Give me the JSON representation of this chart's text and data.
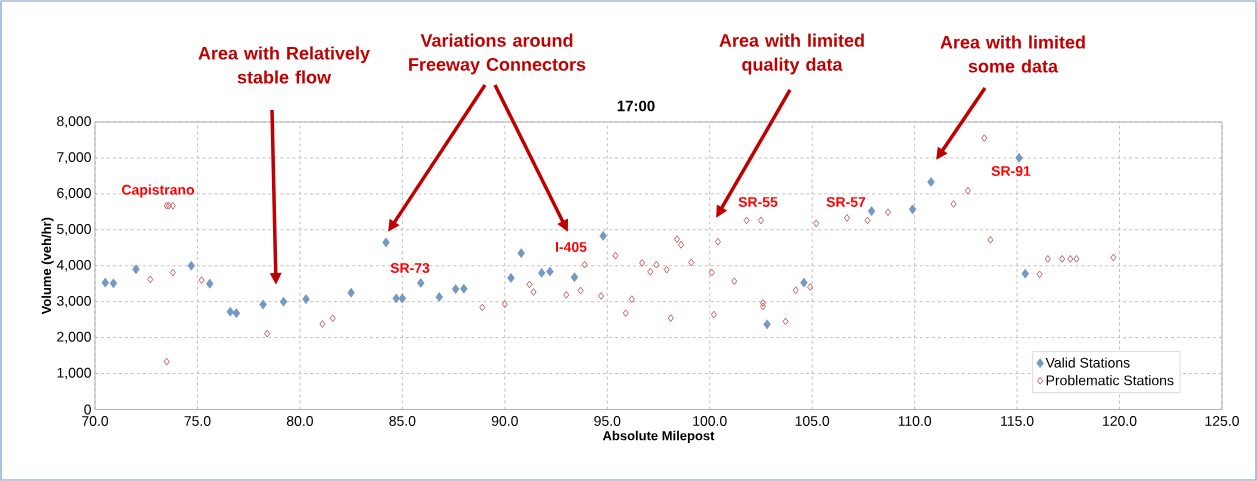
{
  "chart_data": {
    "type": "scatter",
    "title": "17:00",
    "xlabel": "Absolute Milepost",
    "ylabel": "Volume (veh/hr)",
    "xlim": [
      70,
      125
    ],
    "ylim": [
      0,
      8000
    ],
    "xticks": [
      {
        "value": 70,
        "label": "70.0"
      },
      {
        "value": 75,
        "label": "75.0"
      },
      {
        "value": 80,
        "label": "80.0"
      },
      {
        "value": 85,
        "label": "85.0"
      },
      {
        "value": 90,
        "label": "90.0"
      },
      {
        "value": 95,
        "label": "95.0"
      },
      {
        "value": 100,
        "label": "100.0"
      },
      {
        "value": 105,
        "label": "105.0"
      },
      {
        "value": 110,
        "label": "110.0"
      },
      {
        "value": 115,
        "label": "115.0"
      },
      {
        "value": 120,
        "label": "120.0"
      },
      {
        "value": 125,
        "label": "125.0"
      }
    ],
    "yticks": [
      0,
      {
        "value": 1000,
        "label": "1,000"
      },
      {
        "value": 2000,
        "label": "2,000"
      },
      {
        "value": 3000,
        "label": "3,000"
      },
      {
        "value": 4000,
        "label": "4,000"
      },
      {
        "value": 5000,
        "label": "5,000"
      },
      {
        "value": 6000,
        "label": "6,000"
      },
      {
        "value": 7000,
        "label": "7,000"
      },
      {
        "value": 8000,
        "label": "8,000"
      }
    ],
    "grid": true,
    "legend": "bottom right",
    "marker": "diamond",
    "series": [
      {
        "name": "Valid Stations",
        "color": "#7399c6",
        "x": [
          70.5,
          70.9,
          72.0,
          74.7,
          75.6,
          76.6,
          76.9,
          78.2,
          79.2,
          80.3,
          82.5,
          84.2,
          84.7,
          85.0,
          85.9,
          86.8,
          87.6,
          88.0,
          90.3,
          90.8,
          91.8,
          92.2,
          93.4,
          94.8,
          102.8,
          104.6,
          107.9,
          109.9,
          110.8,
          115.1,
          115.4
        ],
        "values": [
          3530,
          3510,
          3900,
          4000,
          3500,
          2720,
          2680,
          2920,
          3000,
          3070,
          3250,
          4650,
          3090,
          3090,
          3520,
          3130,
          3350,
          3360,
          3660,
          4350,
          3800,
          3840,
          3680,
          4830,
          2370,
          3530,
          5520,
          5570,
          6330,
          7000,
          3780
        ]
      },
      {
        "name": "Problematic Stations",
        "color": "#c0504d",
        "x": [
          72.7,
          73.5,
          73.5,
          73.6,
          73.8,
          73.8,
          75.2,
          78.4,
          81.1,
          81.6,
          88.9,
          90.0,
          91.2,
          91.4,
          93.0,
          93.7,
          93.9,
          94.7,
          95.4,
          95.9,
          96.2,
          96.7,
          97.1,
          97.4,
          97.9,
          98.1,
          98.4,
          98.6,
          99.1,
          100.1,
          100.2,
          100.4,
          101.2,
          101.8,
          102.5,
          102.6,
          102.6,
          103.7,
          104.2,
          104.9,
          105.2,
          106.7,
          107.7,
          108.7,
          111.9,
          112.6,
          113.4,
          113.7,
          116.1,
          116.5,
          117.2,
          117.6,
          117.9,
          119.7
        ],
        "values": [
          3620,
          1330,
          5670,
          5670,
          5670,
          3810,
          3600,
          2110,
          2380,
          2540,
          2840,
          2930,
          3480,
          3270,
          3190,
          3310,
          4030,
          3160,
          4280,
          2680,
          3070,
          4080,
          3830,
          4030,
          3890,
          2540,
          4740,
          4580,
          4090,
          3810,
          2640,
          4670,
          3570,
          5260,
          5260,
          2960,
          2870,
          2450,
          3320,
          3410,
          5180,
          5330,
          5260,
          5490,
          5720,
          6090,
          7550,
          4720,
          3760,
          4190,
          4190,
          4190,
          4190,
          4230
        ]
      }
    ],
    "annotations": [
      "Area with Relatively stable flow",
      "Variations around Freeway Connectors",
      "Area with limited quality data",
      "Area with limited some data",
      "Capistrano",
      "SR-73",
      "I-405",
      "SR-55",
      "SR-57",
      "SR-91"
    ]
  }
}
